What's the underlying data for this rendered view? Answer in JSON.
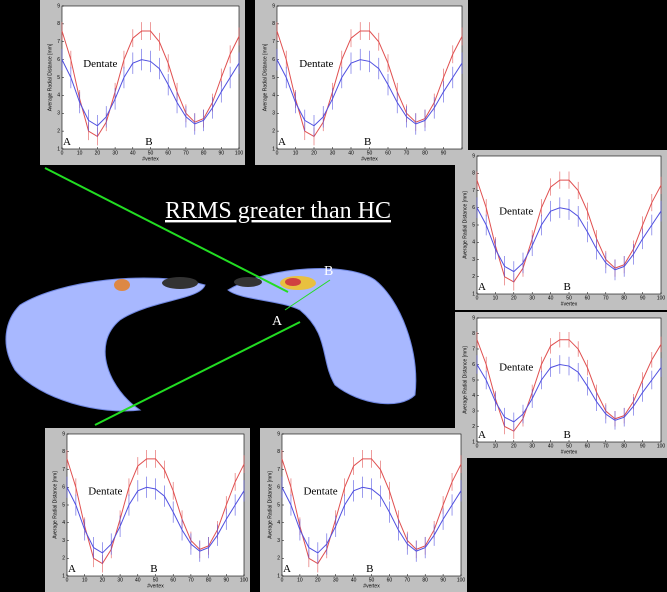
{
  "title": "RRMS greater than HC",
  "render_labels": [
    "A",
    "B"
  ],
  "chart_data": [
    {
      "type": "line",
      "x": [
        0,
        5,
        10,
        15,
        20,
        25,
        30,
        35,
        40,
        45,
        50,
        55,
        60,
        65,
        70,
        75,
        80,
        85,
        90,
        95,
        100
      ],
      "xlim": [
        0,
        100
      ],
      "xticks": [
        0,
        10,
        20,
        30,
        40,
        50,
        60,
        70,
        80,
        90,
        100
      ],
      "ylim": [
        1,
        9
      ],
      "yticks": [
        1,
        2,
        3,
        4,
        5,
        6,
        7,
        8,
        9
      ],
      "xlabel": "#vertex",
      "ylabel": "Average Radial Distance [mm]",
      "annotations": [
        "Dentate",
        "A",
        "B"
      ],
      "series": [
        {
          "color": "#e05050",
          "error": 0.5,
          "values": [
            7.6,
            6.0,
            3.8,
            2.0,
            1.7,
            2.5,
            4.2,
            6.0,
            7.2,
            7.6,
            7.6,
            7.0,
            5.8,
            4.2,
            3.0,
            2.5,
            2.7,
            3.6,
            5.0,
            6.3,
            7.3
          ]
        },
        {
          "color": "#5050e0",
          "error": 0.6,
          "values": [
            6.0,
            5.0,
            3.6,
            2.6,
            2.3,
            2.8,
            3.8,
            5.0,
            5.8,
            6.0,
            5.9,
            5.5,
            4.6,
            3.6,
            2.8,
            2.4,
            2.6,
            3.3,
            4.2,
            5.0,
            5.8
          ]
        }
      ]
    },
    {
      "type": "line",
      "x": [
        0,
        5,
        10,
        15,
        20,
        25,
        30,
        35,
        40,
        45,
        50,
        55,
        60,
        65,
        70,
        75,
        80,
        85,
        90,
        95,
        100
      ],
      "xlim": [
        0,
        100
      ],
      "xticks": [
        0,
        10,
        20,
        30,
        40,
        50,
        60,
        70,
        80,
        90,
        100
      ],
      "ylim": [
        1,
        9
      ],
      "yticks": [
        1,
        2,
        3,
        4,
        5,
        6,
        7,
        8,
        9
      ],
      "xlabel": "#vertex",
      "ylabel": "Average Radial Distance [mm]",
      "annotations": [
        "Dentate",
        "A",
        "B"
      ],
      "series": [
        {
          "color": "#e05050",
          "error": 0.5,
          "values": [
            7.6,
            6.0,
            3.8,
            2.0,
            1.7,
            2.5,
            4.2,
            6.0,
            7.2,
            7.6,
            7.6,
            7.0,
            5.8,
            4.2,
            3.0,
            2.5,
            2.7,
            3.6,
            5.0,
            6.3,
            7.3
          ]
        },
        {
          "color": "#5050e0",
          "error": 0.6,
          "values": [
            6.0,
            5.0,
            3.6,
            2.6,
            2.3,
            2.8,
            3.8,
            5.0,
            5.8,
            6.0,
            5.9,
            5.5,
            4.6,
            3.6,
            2.8,
            2.4,
            2.6,
            3.3,
            4.2,
            5.0,
            5.8
          ]
        }
      ]
    },
    {
      "type": "line",
      "x": [
        0,
        5,
        10,
        15,
        20,
        25,
        30,
        35,
        40,
        45,
        50,
        55,
        60,
        65,
        70,
        75,
        80,
        85,
        90,
        95,
        100
      ],
      "xlim": [
        0,
        100
      ],
      "xticks": [
        0,
        10,
        20,
        30,
        40,
        50,
        60,
        70,
        80,
        90,
        100
      ],
      "ylim": [
        1,
        9
      ],
      "yticks": [
        1,
        2,
        3,
        4,
        5,
        6,
        7,
        8,
        9
      ],
      "xlabel": "#vertex",
      "ylabel": "Average Radial Distance [mm]",
      "annotations": [
        "Dentate",
        "A",
        "B"
      ],
      "series": [
        {
          "color": "#e05050",
          "error": 0.5,
          "values": [
            7.6,
            6.0,
            3.8,
            2.0,
            1.7,
            2.5,
            4.2,
            6.0,
            7.2,
            7.6,
            7.6,
            7.0,
            5.8,
            4.2,
            3.0,
            2.5,
            2.7,
            3.6,
            5.0,
            6.3,
            7.3
          ]
        },
        {
          "color": "#5050e0",
          "error": 0.6,
          "values": [
            6.0,
            5.0,
            3.6,
            2.6,
            2.3,
            2.8,
            3.8,
            5.0,
            5.8,
            6.0,
            5.9,
            5.5,
            4.6,
            3.6,
            2.8,
            2.4,
            2.6,
            3.3,
            4.2,
            5.0,
            5.8
          ]
        }
      ]
    },
    {
      "type": "line",
      "x": [
        0,
        5,
        10,
        15,
        20,
        25,
        30,
        35,
        40,
        45,
        50,
        55,
        60,
        65,
        70,
        75,
        80,
        85,
        90,
        95,
        100
      ],
      "xlim": [
        0,
        100
      ],
      "xticks": [
        0,
        10,
        20,
        30,
        40,
        50,
        60,
        70,
        80,
        90,
        100
      ],
      "ylim": [
        1,
        9
      ],
      "yticks": [
        1,
        2,
        3,
        4,
        5,
        6,
        7,
        8,
        9
      ],
      "xlabel": "#vertex",
      "ylabel": "Average Radial Distance [mm]",
      "annotations": [
        "Dentate",
        "A",
        "B"
      ],
      "series": [
        {
          "color": "#e05050",
          "error": 0.5,
          "values": [
            7.6,
            6.0,
            3.8,
            2.0,
            1.7,
            2.5,
            4.2,
            6.0,
            7.2,
            7.6,
            7.6,
            7.0,
            5.8,
            4.2,
            3.0,
            2.5,
            2.7,
            3.6,
            5.0,
            6.3,
            7.3
          ]
        },
        {
          "color": "#5050e0",
          "error": 0.6,
          "values": [
            6.0,
            5.0,
            3.6,
            2.6,
            2.3,
            2.8,
            3.8,
            5.0,
            5.8,
            6.0,
            5.9,
            5.5,
            4.6,
            3.6,
            2.8,
            2.4,
            2.6,
            3.3,
            4.2,
            5.0,
            5.8
          ]
        }
      ]
    },
    {
      "type": "line",
      "x": [
        0,
        5,
        10,
        15,
        20,
        25,
        30,
        35,
        40,
        45,
        50,
        55,
        60,
        65,
        70,
        75,
        80,
        85,
        90,
        95,
        100
      ],
      "xlim": [
        0,
        100
      ],
      "xticks": [
        0,
        10,
        20,
        30,
        40,
        50,
        60,
        70,
        80,
        90,
        100
      ],
      "ylim": [
        1,
        9
      ],
      "yticks": [
        1,
        2,
        3,
        4,
        5,
        6,
        7,
        8,
        9
      ],
      "xlabel": "#vertex",
      "ylabel": "Average Radial Distance [mm]",
      "annotations": [
        "Dentate",
        "A",
        "B"
      ],
      "series": [
        {
          "color": "#e05050",
          "error": 0.5,
          "values": [
            7.6,
            6.0,
            3.8,
            2.0,
            1.7,
            2.5,
            4.2,
            6.0,
            7.2,
            7.6,
            7.6,
            7.0,
            5.8,
            4.2,
            3.0,
            2.5,
            2.7,
            3.6,
            5.0,
            6.3,
            7.3
          ]
        },
        {
          "color": "#5050e0",
          "error": 0.6,
          "values": [
            6.0,
            5.0,
            3.6,
            2.6,
            2.3,
            2.8,
            3.8,
            5.0,
            5.8,
            6.0,
            5.9,
            5.5,
            4.6,
            3.6,
            2.8,
            2.4,
            2.6,
            3.3,
            4.2,
            5.0,
            5.8
          ]
        }
      ]
    },
    {
      "type": "line",
      "x": [
        0,
        5,
        10,
        15,
        20,
        25,
        30,
        35,
        40,
        45,
        50,
        55,
        60,
        65,
        70,
        75,
        80,
        85,
        90,
        95,
        100
      ],
      "xlim": [
        0,
        100
      ],
      "xticks": [
        0,
        10,
        20,
        30,
        40,
        50,
        60,
        70,
        80,
        90,
        100
      ],
      "ylim": [
        1,
        9
      ],
      "yticks": [
        1,
        2,
        3,
        4,
        5,
        6,
        7,
        8,
        9
      ],
      "xlabel": "#vertex",
      "ylabel": "Average Radial Distance [mm]",
      "annotations": [
        "Dentate",
        "A",
        "B"
      ],
      "series": [
        {
          "color": "#e05050",
          "error": 0.5,
          "values": [
            7.6,
            6.0,
            3.8,
            2.0,
            1.7,
            2.5,
            4.2,
            6.0,
            7.2,
            7.6,
            7.6,
            7.0,
            5.8,
            4.2,
            3.0,
            2.5,
            2.7,
            3.6,
            5.0,
            6.3,
            7.3
          ]
        },
        {
          "color": "#5050e0",
          "error": 0.6,
          "values": [
            6.0,
            5.0,
            3.6,
            2.6,
            2.3,
            2.8,
            3.8,
            5.0,
            5.8,
            6.0,
            5.9,
            5.5,
            4.6,
            3.6,
            2.8,
            2.4,
            2.6,
            3.3,
            4.2,
            5.0,
            5.8
          ]
        }
      ]
    }
  ]
}
